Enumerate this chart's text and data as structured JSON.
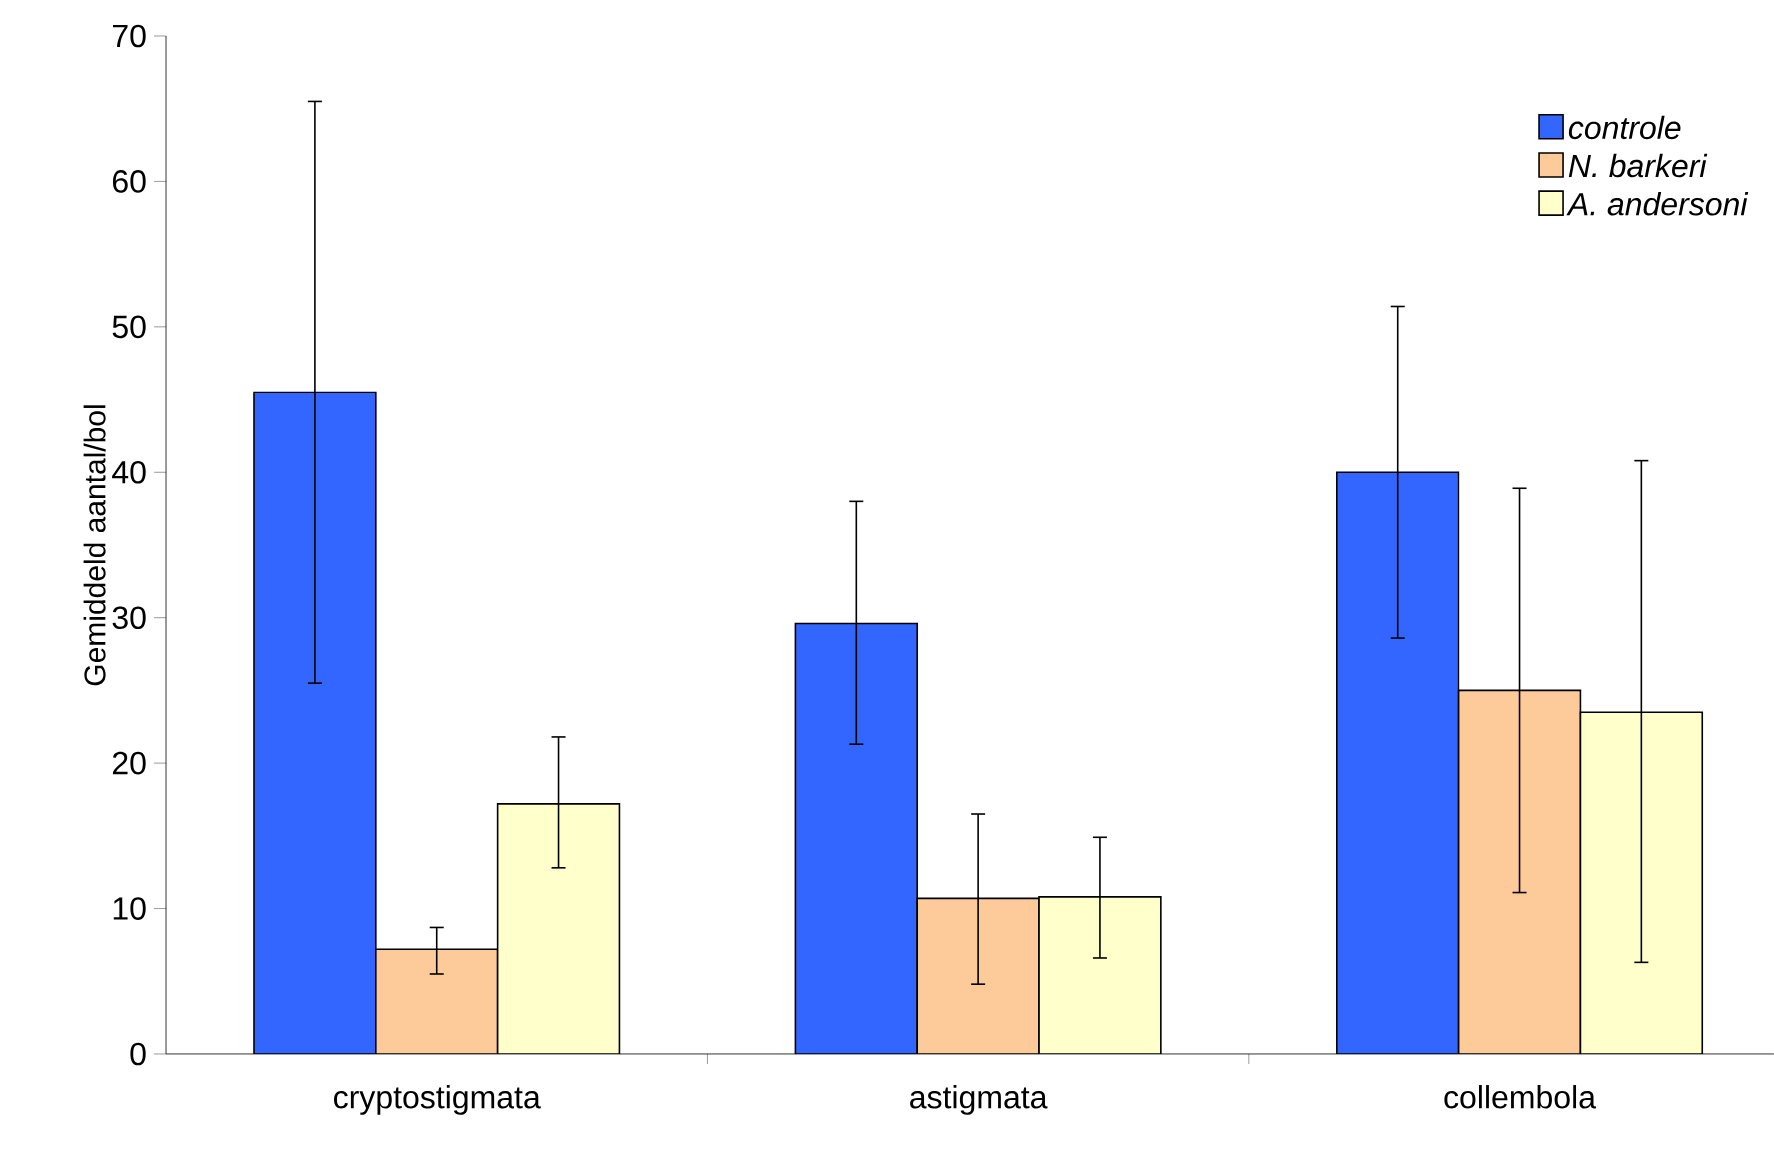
{
  "chart_data": {
    "type": "bar",
    "ylabel": "Gemiddeld aantal/bol",
    "categories": [
      "cryptostigmata",
      "astigmata",
      "collembola"
    ],
    "series": [
      {
        "name": "controle",
        "color": "#3366ff",
        "values": [
          45.5,
          29.6,
          40.0
        ],
        "errors": [
          [
            25.5,
            65.5
          ],
          [
            21.3,
            38.0
          ],
          [
            28.6,
            51.4
          ]
        ]
      },
      {
        "name": "N. barkeri",
        "color": "#fdca99",
        "values": [
          7.2,
          10.7,
          25.0
        ],
        "errors": [
          [
            5.5,
            8.7
          ],
          [
            4.8,
            16.5
          ],
          [
            11.1,
            38.9
          ]
        ]
      },
      {
        "name": "A. andersoni",
        "color": "#ffffcc",
        "values": [
          17.2,
          10.8,
          23.5
        ],
        "errors": [
          [
            12.8,
            21.8
          ],
          [
            6.6,
            14.9
          ],
          [
            6.3,
            40.8
          ]
        ]
      }
    ],
    "ylim": [
      0,
      70
    ],
    "yticks": [
      0,
      10,
      20,
      30,
      40,
      50,
      60,
      70
    ],
    "grid": false,
    "legend": "top right"
  }
}
